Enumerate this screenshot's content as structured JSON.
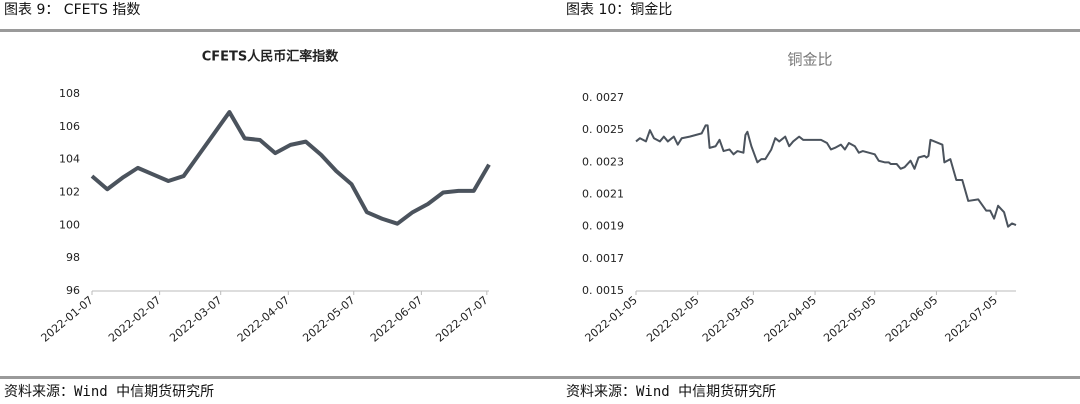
{
  "figures": [
    {
      "label": "图表 9：  CFETS 指数",
      "source": "资料来源：Wind  中信期货研究所"
    },
    {
      "label": "图表 10：铜金比",
      "source": "资料来源：Wind  中信期货研究所"
    }
  ],
  "chart_data": [
    {
      "type": "line",
      "title": "CFETS人民币汇率指数",
      "x": [
        "2022-01-07",
        "2022-01-14",
        "2022-01-21",
        "2022-01-28",
        "2022-02-04",
        "2022-02-11",
        "2022-02-18",
        "2022-02-25",
        "2022-03-04",
        "2022-03-11",
        "2022-03-18",
        "2022-03-25",
        "2022-04-01",
        "2022-04-08",
        "2022-04-15",
        "2022-04-22",
        "2022-04-29",
        "2022-05-06",
        "2022-05-13",
        "2022-05-20",
        "2022-05-27",
        "2022-06-03",
        "2022-06-10",
        "2022-06-17",
        "2022-06-24",
        "2022-07-01",
        "2022-07-08"
      ],
      "series": [
        {
          "name": "CFETS人民币汇率指数",
          "color": "#4b535d",
          "values": [
            103.0,
            102.2,
            102.9,
            103.5,
            103.1,
            102.7,
            103.0,
            104.3,
            105.6,
            106.9,
            105.3,
            105.2,
            104.4,
            104.9,
            105.1,
            104.3,
            103.3,
            102.5,
            100.8,
            100.4,
            100.1,
            100.8,
            101.3,
            102.0,
            102.1,
            102.1,
            103.7
          ]
        }
      ],
      "xlim": [
        "2022-01-07",
        "2022-07-08"
      ],
      "xticks": [
        "2022-01-07",
        "2022-02-07",
        "2022-03-07",
        "2022-04-07",
        "2022-05-07",
        "2022-06-07",
        "2022-07-07"
      ],
      "ylim": [
        96,
        108
      ],
      "yticks": [
        96,
        98,
        100,
        102,
        104,
        106,
        108
      ],
      "grid": false
    },
    {
      "type": "line",
      "title": "铜金比",
      "x": [
        "2022-01-05",
        "2022-01-07",
        "2022-01-10",
        "2022-01-12",
        "2022-01-14",
        "2022-01-17",
        "2022-01-19",
        "2022-01-21",
        "2022-01-24",
        "2022-01-26",
        "2022-01-28",
        "2022-02-01",
        "2022-02-04",
        "2022-02-07",
        "2022-02-09",
        "2022-02-10",
        "2022-02-11",
        "2022-02-14",
        "2022-02-16",
        "2022-02-18",
        "2022-02-21",
        "2022-02-23",
        "2022-02-25",
        "2022-02-28",
        "2022-03-01",
        "2022-03-02",
        "2022-03-04",
        "2022-03-07",
        "2022-03-09",
        "2022-03-11",
        "2022-03-14",
        "2022-03-16",
        "2022-03-18",
        "2022-03-21",
        "2022-03-23",
        "2022-03-25",
        "2022-03-28",
        "2022-03-30",
        "2022-04-01",
        "2022-04-05",
        "2022-04-08",
        "2022-04-11",
        "2022-04-13",
        "2022-04-15",
        "2022-04-18",
        "2022-04-20",
        "2022-04-22",
        "2022-04-25",
        "2022-04-27",
        "2022-04-29",
        "2022-05-05",
        "2022-05-07",
        "2022-05-10",
        "2022-05-12",
        "2022-05-13",
        "2022-05-16",
        "2022-05-18",
        "2022-05-20",
        "2022-05-23",
        "2022-05-25",
        "2022-05-27",
        "2022-05-30",
        "2022-05-31",
        "2022-06-01",
        "2022-06-02",
        "2022-06-06",
        "2022-06-08",
        "2022-06-09",
        "2022-06-12",
        "2022-06-15",
        "2022-06-18",
        "2022-06-21",
        "2022-06-26",
        "2022-06-30",
        "2022-07-02",
        "2022-07-04",
        "2022-07-06",
        "2022-07-09",
        "2022-07-11",
        "2022-07-13",
        "2022-07-15"
      ],
      "series": [
        {
          "name": "铜金比",
          "color": "#4b535d",
          "values": [
            0.00243,
            0.00245,
            0.00243,
            0.0025,
            0.00245,
            0.00243,
            0.00246,
            0.00243,
            0.00246,
            0.00241,
            0.00245,
            0.00246,
            0.00247,
            0.00248,
            0.00253,
            0.00253,
            0.00239,
            0.0024,
            0.00244,
            0.00237,
            0.00238,
            0.00235,
            0.00237,
            0.00236,
            0.00247,
            0.00249,
            0.0024,
            0.0023,
            0.00232,
            0.00232,
            0.00238,
            0.00245,
            0.00243,
            0.00246,
            0.0024,
            0.00243,
            0.00246,
            0.00244,
            0.00244,
            0.00244,
            0.00244,
            0.00242,
            0.00238,
            0.00239,
            0.00241,
            0.00238,
            0.00242,
            0.0024,
            0.00236,
            0.00237,
            0.00235,
            0.00231,
            0.0023,
            0.0023,
            0.00229,
            0.00229,
            0.00226,
            0.00227,
            0.00231,
            0.00226,
            0.00233,
            0.00234,
            0.00233,
            0.00234,
            0.00244,
            0.00242,
            0.00241,
            0.0023,
            0.00232,
            0.00219,
            0.00219,
            0.00206,
            0.00207,
            0.002,
            0.002,
            0.00195,
            0.00203,
            0.00199,
            0.0019,
            0.00192,
            0.00191
          ]
        }
      ],
      "xlim": [
        "2022-01-05",
        "2022-07-15"
      ],
      "xticks": [
        "2022-01-05",
        "2022-02-05",
        "2022-03-05",
        "2022-04-05",
        "2022-05-05",
        "2022-06-05",
        "2022-07-05"
      ],
      "ylim": [
        0.0015,
        0.0027
      ],
      "yticks": [
        {
          "value": 0.0015,
          "label": "0. 0015"
        },
        {
          "value": 0.0017,
          "label": "0. 0017"
        },
        {
          "value": 0.0019,
          "label": "0. 0019"
        },
        {
          "value": 0.0021,
          "label": "0. 0021"
        },
        {
          "value": 0.0023,
          "label": "0. 0023"
        },
        {
          "value": 0.0025,
          "label": "0. 0025"
        },
        {
          "value": 0.0027,
          "label": "0. 0027"
        }
      ],
      "grid": false
    }
  ]
}
